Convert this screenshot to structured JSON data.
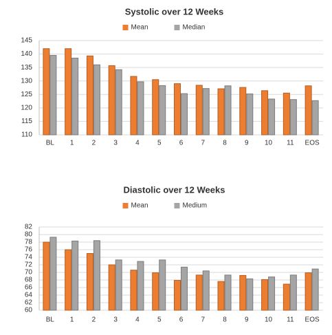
{
  "chart_data": [
    {
      "type": "bar",
      "title": "Systolic over 12 Weeks",
      "categories": [
        "BL",
        "1",
        "2",
        "3",
        "4",
        "5",
        "6",
        "7",
        "8",
        "9",
        "10",
        "11",
        "EOS"
      ],
      "series": [
        {
          "name": "Mean",
          "color": "#ed7d31",
          "values": [
            142,
            142,
            139.3,
            135.7,
            131.7,
            130.5,
            129,
            128.4,
            127.1,
            127.6,
            126.4,
            125.5,
            128.2
          ]
        },
        {
          "name": "Median",
          "color": "#a5a5a5",
          "values": [
            139.5,
            138.5,
            136,
            134.2,
            129.7,
            128.3,
            125.3,
            127.2,
            128.2,
            125.2,
            123.3,
            123.1,
            122.7
          ]
        }
      ],
      "ylim": [
        110,
        145
      ],
      "yticks": [
        110,
        115,
        120,
        125,
        130,
        135,
        140,
        145
      ],
      "grid": true,
      "legend": "top"
    },
    {
      "type": "bar",
      "title": "Diastolic over 12 Weeks",
      "categories": [
        "BL",
        "1",
        "2",
        "3",
        "4",
        "5",
        "6",
        "7",
        "8",
        "9",
        "10",
        "11",
        "EOS"
      ],
      "series": [
        {
          "name": "Mean",
          "color": "#ed7d31",
          "values": [
            78,
            76,
            75,
            72,
            70.6,
            69.9,
            67.9,
            69.3,
            67.6,
            69.2,
            68.1,
            66.9,
            69.9
          ]
        },
        {
          "name": "Medium",
          "color": "#a5a5a5",
          "values": [
            79.3,
            78.3,
            78.4,
            73.3,
            72.9,
            73.3,
            71.4,
            70.4,
            69.3,
            68.3,
            68.8,
            69.3,
            70.9
          ]
        }
      ],
      "ylim": [
        60,
        82
      ],
      "yticks": [
        60,
        62,
        64,
        66,
        68,
        70,
        72,
        74,
        76,
        78,
        80,
        82
      ],
      "grid": true,
      "legend": "top"
    }
  ]
}
